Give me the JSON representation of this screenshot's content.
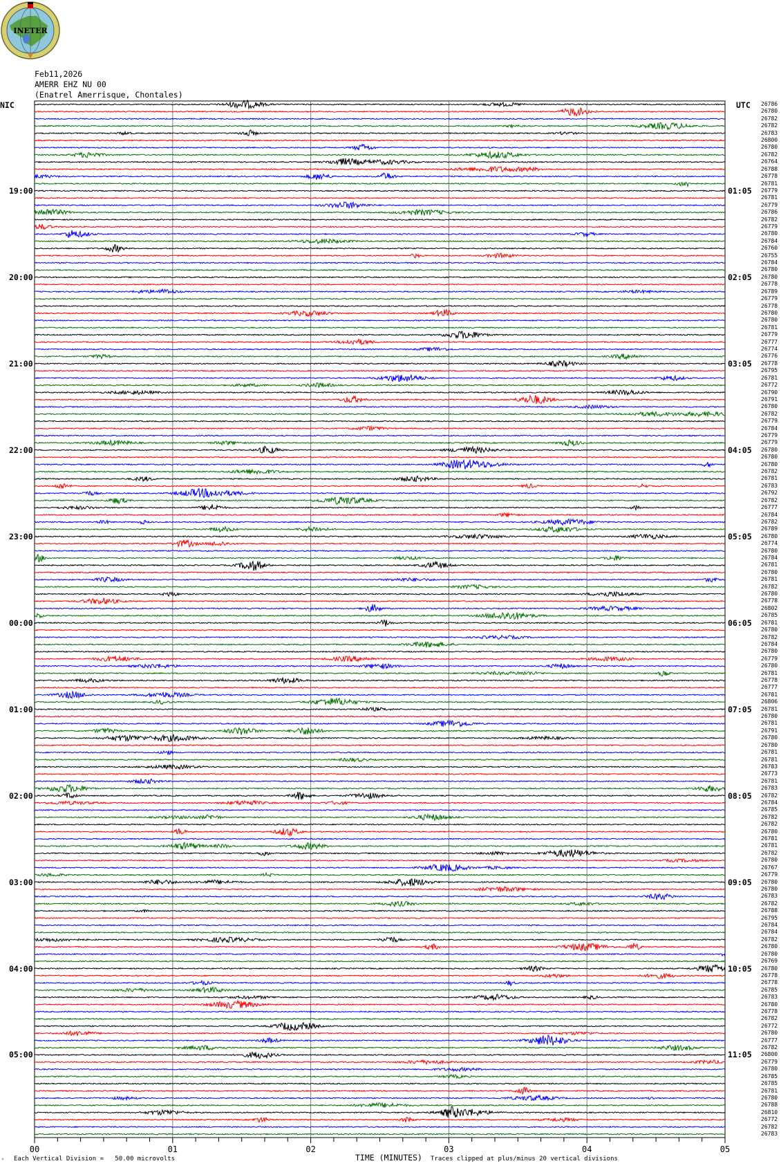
{
  "logo": {
    "text": "INETER"
  },
  "header": {
    "date": "Feb11,2026",
    "station": "AMERR EHZ NU 00",
    "location": "(Enatrel Amerrisque, Chontales)"
  },
  "left_zone_label": "NIC",
  "right_zone_label": "UTC",
  "footer": {
    "scale_note": "Each Vertical Division =   50.00 microvolts",
    "xlabel": "TIME (MINUTES)",
    "clip_note": "Traces clipped at plus/minus 20 vertical divisions"
  },
  "colors": {
    "trace_cycle": [
      "#000000",
      "#ff0000",
      "#0000ff",
      "#007000"
    ],
    "grid": "#808080"
  },
  "chart_data": {
    "type": "line",
    "subtype": "helicorder",
    "title": "",
    "xlabel": "TIME (MINUTES)",
    "ylabel": "",
    "xlim": [
      0,
      5
    ],
    "x_tick_labels": [
      "00",
      "01",
      "02",
      "03",
      "04",
      "05"
    ],
    "minor_tick_seconds": 10,
    "grid": "vertical lines every minute",
    "minutes_per_trace": 5,
    "trace_count": 144,
    "left_hour_labels": [
      {
        "trace": 12,
        "label": "19:00"
      },
      {
        "trace": 24,
        "label": "20:00"
      },
      {
        "trace": 36,
        "label": "21:00"
      },
      {
        "trace": 48,
        "label": "22:00"
      },
      {
        "trace": 60,
        "label": "23:00"
      },
      {
        "trace": 72,
        "label": "00:00"
      },
      {
        "trace": 84,
        "label": "01:00"
      },
      {
        "trace": 96,
        "label": "02:00"
      },
      {
        "trace": 108,
        "label": "03:00"
      },
      {
        "trace": 120,
        "label": "04:00"
      },
      {
        "trace": 132,
        "label": "05:00"
      }
    ],
    "right_hour_labels": [
      {
        "trace": 12,
        "label": "01:05"
      },
      {
        "trace": 24,
        "label": "02:05"
      },
      {
        "trace": 36,
        "label": "03:05"
      },
      {
        "trace": 48,
        "label": "04:05"
      },
      {
        "trace": 60,
        "label": "05:05"
      },
      {
        "trace": 72,
        "label": "06:05"
      },
      {
        "trace": 84,
        "label": "07:05"
      },
      {
        "trace": 96,
        "label": "08:05"
      },
      {
        "trace": 108,
        "label": "09:05"
      },
      {
        "trace": 120,
        "label": "10:05"
      },
      {
        "trace": 132,
        "label": "11:05"
      }
    ],
    "trace_mean_counts": [
      "26786",
      "26780",
      "26782",
      "26782",
      "26783",
      "26800",
      "26780",
      "26782",
      "26764",
      "26788",
      "26778",
      "26781",
      "26779",
      "26781",
      "26779",
      "26786",
      "26782",
      "26779",
      "26780",
      "26784",
      "26760",
      "26755",
      "26784",
      "26780",
      "26780",
      "26778",
      "26789",
      "26779",
      "26778",
      "26780",
      "26780",
      "26781",
      "26779",
      "26777",
      "26774",
      "26776",
      "26778",
      "26795",
      "26781",
      "26772",
      "26790",
      "26791",
      "26780",
      "26782",
      "26779",
      "26784",
      "26779",
      "26779",
      "26780",
      "26780",
      "26780",
      "26782",
      "26781",
      "26783",
      "26792",
      "26782",
      "26777",
      "26784",
      "26782",
      "26789",
      "26780",
      "26774",
      "26780",
      "26784",
      "26781",
      "26780",
      "26781",
      "26782",
      "26780",
      "26778",
      "26802",
      "26785",
      "26781",
      "26780",
      "26782",
      "26784",
      "26780",
      "26779",
      "26780",
      "26781",
      "26778",
      "26777",
      "26781",
      "26806",
      "26781",
      "26780",
      "26781",
      "26791",
      "26780",
      "26780",
      "26781",
      "26781",
      "26783",
      "26773",
      "26781",
      "26783",
      "26782",
      "26784",
      "26785",
      "26782",
      "26782",
      "26780",
      "26781",
      "26781",
      "26782",
      "26780",
      "26767",
      "26779",
      "26780",
      "26780",
      "26783",
      "26782",
      "26788",
      "26795",
      "26784",
      "26784",
      "26782",
      "26780",
      "26780",
      "26769",
      "26780",
      "26778",
      "26778",
      "26785",
      "26783",
      "26780",
      "26778",
      "26782",
      "26772",
      "26780",
      "26777",
      "26782",
      "26800",
      "26779",
      "26780",
      "26785",
      "26785",
      "26781",
      "26780",
      "26788",
      "26810",
      "26772",
      "26782",
      "26783"
    ]
  }
}
